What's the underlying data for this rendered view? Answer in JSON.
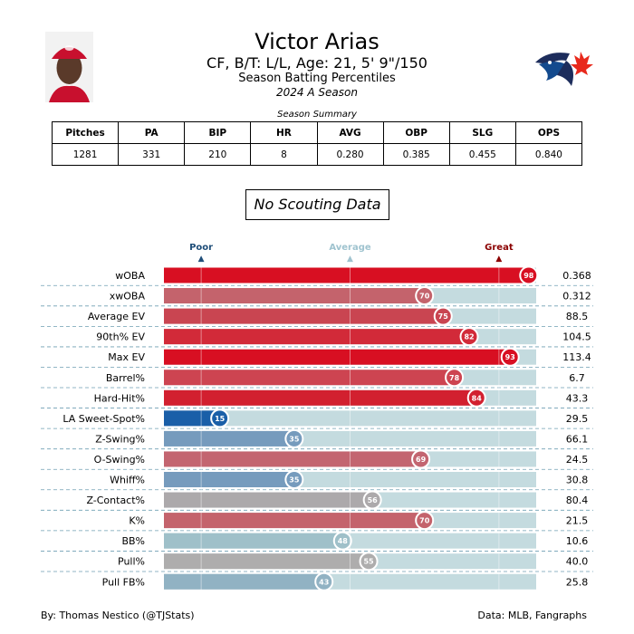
{
  "header": {
    "player_name": "Victor Arias",
    "player_info": "CF, B/T: L/L, Age: 21, 5' 9\"/150",
    "report_title": "Season Batting Percentiles",
    "season_label": "2024 A Season"
  },
  "summary": {
    "title": "Season Summary",
    "columns": [
      "Pitches",
      "PA",
      "BIP",
      "HR",
      "AVG",
      "OBP",
      "SLG",
      "OPS"
    ],
    "values": [
      "1281",
      "331",
      "210",
      "8",
      "0.280",
      "0.385",
      "0.455",
      "0.840"
    ]
  },
  "scouting_label": "No Scouting Data",
  "scale": {
    "poor": "Poor",
    "average": "Average",
    "great": "Great",
    "poor_color": "#1f4e79",
    "average_color": "#9fc3cf",
    "great_color": "#8b0000"
  },
  "chart_data": {
    "type": "bar",
    "xlim": [
      0,
      100
    ],
    "categories": [
      "wOBA",
      "xwOBA",
      "Average EV",
      "90th% EV",
      "Max EV",
      "Barrel%",
      "Hard-Hit%",
      "LA Sweet-Spot%",
      "Z-Swing%",
      "O-Swing%",
      "Whiff%",
      "Z-Contact%",
      "K%",
      "BB%",
      "Pull%",
      "Pull FB%"
    ],
    "percentiles": [
      98,
      70,
      75,
      82,
      93,
      78,
      84,
      15,
      35,
      69,
      35,
      56,
      70,
      48,
      55,
      43
    ],
    "stat_values": [
      "0.368",
      "0.312",
      "88.5",
      "104.5",
      "113.4",
      "6.7",
      "43.3",
      "29.5",
      "66.1",
      "24.5",
      "30.8",
      "80.4",
      "21.5",
      "10.6",
      "40.0",
      "25.8"
    ],
    "bar_colors": [
      "#d80f22",
      "#c4636c",
      "#c94551",
      "#d22a39",
      "#d80f22",
      "#cd4451",
      "#d2202f",
      "#1a5fa8",
      "#769bbd",
      "#c36570",
      "#769bbd",
      "#aca9ab",
      "#c4636c",
      "#9fc0c9",
      "#aeadad",
      "#91b2c3"
    ],
    "track_color": "#c4dbdf"
  },
  "footer": {
    "author": "By: Thomas Nestico (@TJStats)",
    "source": "Data: MLB, Fangraphs"
  }
}
